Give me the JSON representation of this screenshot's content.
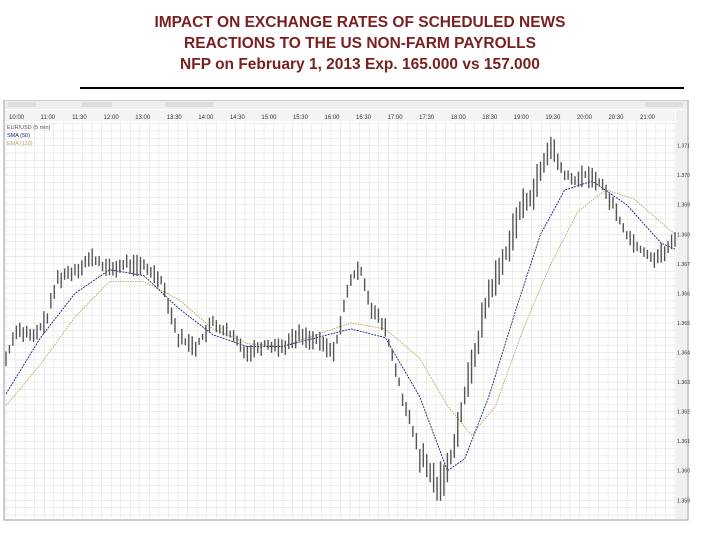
{
  "slide": {
    "title_line1": "IMPACT ON EXCHANGE RATES OF SCHEDULED NEWS",
    "title_line2": "REACTIONS TO THE US NON-FARM PAYROLLS",
    "title_line3": "NFP on February 1, 2013 Exp. 165.000 vs 157.000"
  },
  "colors": {
    "title": "#7a1f1f",
    "price": "#555555",
    "sma": "#1a237e",
    "ema": "#b8a266",
    "grid": "#d0d0d0",
    "axis_bg": "#f2f2f2",
    "header_bg": "#eeeeee"
  },
  "chart_data": {
    "type": "line",
    "x_ticks": [
      "10:00",
      "11:00",
      "11:30",
      "12:00",
      "13:00",
      "13:30",
      "14:00",
      "14:30",
      "15:00",
      "15:30",
      "16:00",
      "16:30",
      "17:00",
      "17:30",
      "18:00",
      "18:30",
      "19:00",
      "19:30",
      "20:00",
      "20:30",
      "21:00"
    ],
    "y_ticks": [
      1.371,
      1.37,
      1.369,
      1.368,
      1.367,
      1.366,
      1.365,
      1.364,
      1.363,
      1.362,
      1.361,
      1.36,
      1.359
    ],
    "y_tick_labels": [
      "1.3710",
      "1.3700",
      "1.3690",
      "1.3680",
      "1.3670",
      "1.3660",
      "1.3650",
      "1.3640",
      "1.3630",
      "1.3620",
      "1.3610",
      "1.3600",
      "1.3590"
    ],
    "ylim": [
      1.3584,
      1.3718
    ],
    "grid": true,
    "legend_position": "top-left",
    "legend": [
      {
        "label": "EUR/USD (5 min)",
        "color": "#555555"
      },
      {
        "label": "SMA (50)",
        "color": "#1a237e"
      },
      {
        "label": "EMA (110)",
        "color": "#b8a266"
      }
    ],
    "price_anchors": [
      [
        0,
        1.3638
      ],
      [
        3,
        1.3648
      ],
      [
        8,
        1.3645
      ],
      [
        12,
        1.3652
      ],
      [
        15,
        1.3665
      ],
      [
        20,
        1.3668
      ],
      [
        25,
        1.3672
      ],
      [
        30,
        1.3668
      ],
      [
        35,
        1.367
      ],
      [
        40,
        1.3669
      ],
      [
        45,
        1.3665
      ],
      [
        50,
        1.3645
      ],
      [
        55,
        1.3642
      ],
      [
        60,
        1.365
      ],
      [
        65,
        1.3646
      ],
      [
        70,
        1.364
      ],
      [
        75,
        1.3643
      ],
      [
        80,
        1.3642
      ],
      [
        85,
        1.3646
      ],
      [
        90,
        1.3644
      ],
      [
        95,
        1.364
      ],
      [
        100,
        1.3665
      ],
      [
        103,
        1.3668
      ],
      [
        106,
        1.3655
      ],
      [
        110,
        1.3648
      ],
      [
        115,
        1.3625
      ],
      [
        120,
        1.3605
      ],
      [
        125,
        1.3595
      ],
      [
        128,
        1.36
      ],
      [
        132,
        1.362
      ],
      [
        136,
        1.364
      ],
      [
        140,
        1.366
      ],
      [
        144,
        1.367
      ],
      [
        148,
        1.3685
      ],
      [
        152,
        1.3693
      ],
      [
        155,
        1.37
      ],
      [
        158,
        1.371
      ],
      [
        161,
        1.3702
      ],
      [
        164,
        1.3698
      ],
      [
        168,
        1.37
      ],
      [
        172,
        1.3698
      ],
      [
        176,
        1.369
      ],
      [
        180,
        1.368
      ],
      [
        184,
        1.3675
      ],
      [
        188,
        1.3672
      ],
      [
        191,
        1.3674
      ],
      [
        194,
        1.3678
      ]
    ],
    "sma_anchors": [
      [
        0,
        1.3626
      ],
      [
        10,
        1.3645
      ],
      [
        20,
        1.366
      ],
      [
        30,
        1.3668
      ],
      [
        40,
        1.3666
      ],
      [
        50,
        1.3655
      ],
      [
        60,
        1.3646
      ],
      [
        70,
        1.3642
      ],
      [
        80,
        1.3642
      ],
      [
        90,
        1.3645
      ],
      [
        100,
        1.3648
      ],
      [
        110,
        1.3645
      ],
      [
        120,
        1.3625
      ],
      [
        128,
        1.36
      ],
      [
        133,
        1.3604
      ],
      [
        140,
        1.3625
      ],
      [
        148,
        1.3655
      ],
      [
        155,
        1.368
      ],
      [
        162,
        1.3695
      ],
      [
        170,
        1.3698
      ],
      [
        180,
        1.369
      ],
      [
        190,
        1.3677
      ],
      [
        194,
        1.3675
      ]
    ],
    "ema_anchors": [
      [
        0,
        1.3622
      ],
      [
        10,
        1.3636
      ],
      [
        20,
        1.3652
      ],
      [
        30,
        1.3664
      ],
      [
        40,
        1.3664
      ],
      [
        50,
        1.3658
      ],
      [
        60,
        1.3648
      ],
      [
        70,
        1.3643
      ],
      [
        80,
        1.3642
      ],
      [
        90,
        1.3646
      ],
      [
        100,
        1.365
      ],
      [
        110,
        1.3648
      ],
      [
        120,
        1.3638
      ],
      [
        128,
        1.3622
      ],
      [
        135,
        1.3612
      ],
      [
        142,
        1.3622
      ],
      [
        150,
        1.3648
      ],
      [
        158,
        1.367
      ],
      [
        166,
        1.3688
      ],
      [
        174,
        1.3695
      ],
      [
        182,
        1.3692
      ],
      [
        190,
        1.3684
      ],
      [
        194,
        1.368
      ]
    ]
  }
}
